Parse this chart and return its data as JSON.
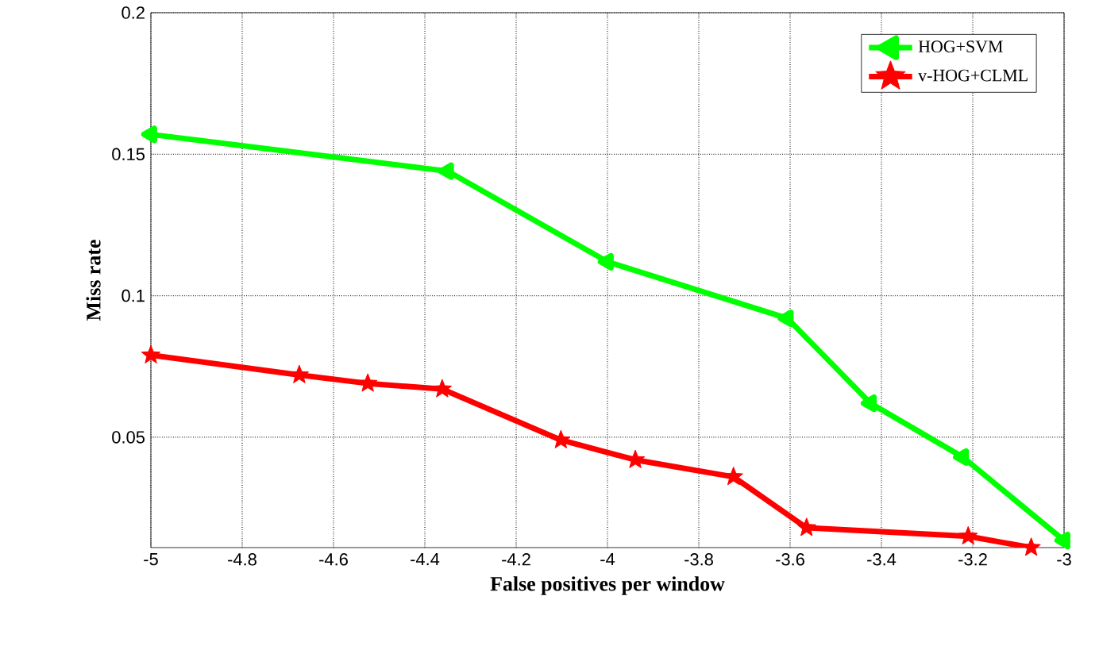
{
  "chart_data": {
    "type": "line",
    "xlabel": "False positives per window",
    "ylabel": "Miss rate",
    "xlim": [
      -5,
      -3
    ],
    "ylim": [
      0.011,
      0.2
    ],
    "xticks": [
      -5,
      -4.8,
      -4.6,
      -4.4,
      -4.2,
      -4,
      -3.8,
      -3.6,
      -3.4,
      -3.2,
      -3
    ],
    "yticks": [
      0.05,
      0.1,
      0.15,
      0.2
    ],
    "grid": true,
    "legend": "top right",
    "line_style": "solid",
    "series": [
      {
        "name": "HOG+SVM",
        "color": "#00ff00",
        "marker": "triangle",
        "x": [
          -5,
          -4.35,
          -4,
          -3.606,
          -3.424,
          -3.222,
          -3
        ],
        "values": [
          0.157,
          0.144,
          0.112,
          0.092,
          0.062,
          0.043,
          0.0135
        ]
      },
      {
        "name": "v-HOG+CLML",
        "color": "#ff0000",
        "marker": "star",
        "x": [
          -5,
          -4.675,
          -4.525,
          -4.362,
          -4.102,
          -3.939,
          -3.724,
          -3.564,
          -3.21,
          -3.072
        ],
        "values": [
          0.079,
          0.072,
          0.069,
          0.067,
          0.049,
          0.042,
          0.036,
          0.018,
          0.015,
          0.011
        ]
      }
    ]
  }
}
